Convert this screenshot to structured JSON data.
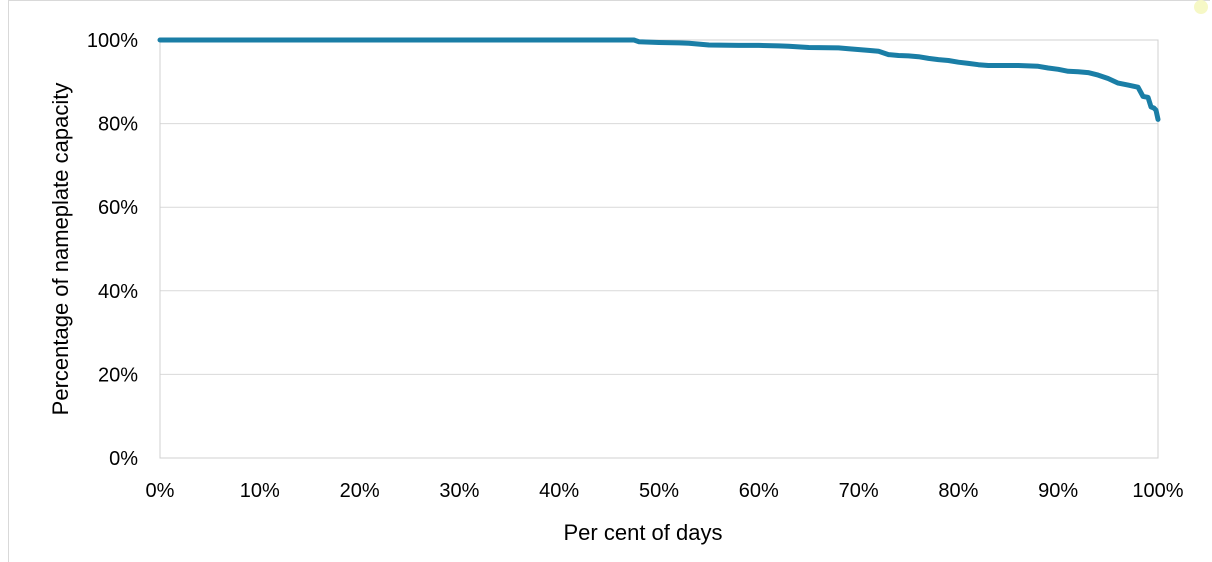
{
  "chart_data": {
    "type": "line",
    "title": "",
    "xlabel": "Per cent of days",
    "ylabel": "Percentage of nameplate capacity",
    "xlim": [
      0,
      100
    ],
    "ylim": [
      0,
      100
    ],
    "x_ticks": [
      0,
      10,
      20,
      30,
      40,
      50,
      60,
      70,
      80,
      90,
      100
    ],
    "x_tick_labels": [
      "0%",
      "10%",
      "20%",
      "30%",
      "40%",
      "50%",
      "60%",
      "70%",
      "80%",
      "90%",
      "100%"
    ],
    "y_ticks": [
      0,
      20,
      40,
      60,
      80,
      100
    ],
    "y_tick_labels": [
      "0%",
      "20%",
      "40%",
      "60%",
      "80%",
      "100%"
    ],
    "grid": "horizontal",
    "legend": "none",
    "series": [
      {
        "color": "#1a7ea6",
        "x": [
          0,
          10,
          20,
          30,
          40,
          47.5,
          48,
          50,
          52,
          53,
          55,
          58,
          60,
          62,
          63,
          65,
          68,
          69,
          71,
          72,
          73,
          74,
          75,
          76,
          77,
          78,
          79,
          80,
          81,
          82,
          83,
          84,
          85,
          86,
          87,
          88,
          89,
          90,
          91,
          92,
          93,
          94,
          95,
          96,
          97,
          98,
          98.5,
          99,
          99.3,
          99.6,
          99.8,
          100
        ],
        "y": [
          100,
          100,
          100,
          100,
          100,
          100,
          99.6,
          99.4,
          99.3,
          99.2,
          98.8,
          98.7,
          98.7,
          98.6,
          98.5,
          98.2,
          98.1,
          97.9,
          97.5,
          97.3,
          96.5,
          96.3,
          96.2,
          96.0,
          95.6,
          95.3,
          95.1,
          94.7,
          94.4,
          94.1,
          93.9,
          93.9,
          93.9,
          93.9,
          93.8,
          93.7,
          93.3,
          93.0,
          92.5,
          92.4,
          92.2,
          91.6,
          90.8,
          89.7,
          89.2,
          88.7,
          86.5,
          86.3,
          84.0,
          83.7,
          83.2,
          81.0
        ]
      }
    ]
  }
}
